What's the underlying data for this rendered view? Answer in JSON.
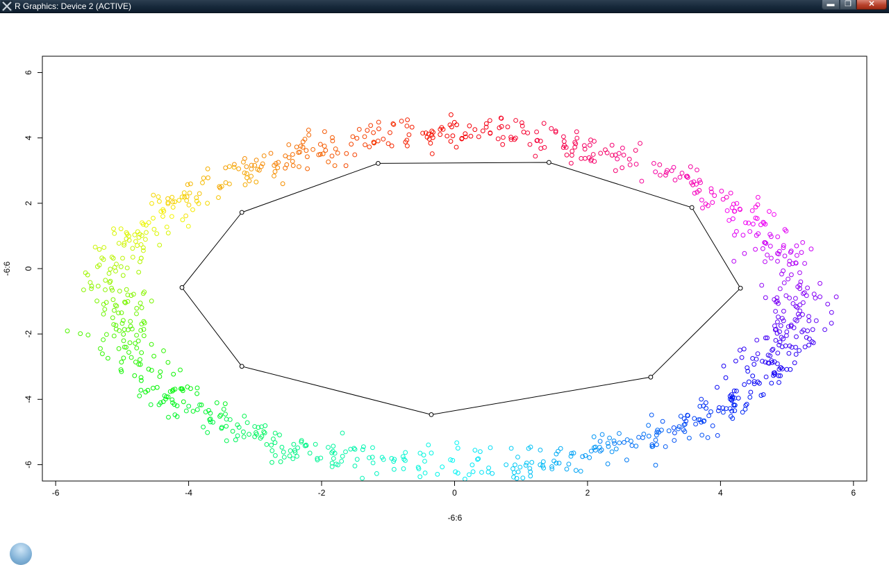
{
  "window": {
    "title": "R Graphics: Device 2 (ACTIVE)",
    "buttons": {
      "minimize": "▬",
      "maximize": "❐",
      "close": "✕"
    }
  },
  "chart_data": {
    "type": "scatter",
    "title": "",
    "xlabel": "-6:6",
    "ylabel": "-6:6",
    "xlim": [
      -6.2,
      6.2
    ],
    "ylim": [
      -6.5,
      6.5
    ],
    "xticks": [
      -6,
      -4,
      -2,
      0,
      2,
      4,
      6
    ],
    "yticks": [
      -6,
      -4,
      -2,
      0,
      2,
      4,
      6
    ],
    "xtick_labels": [
      "-6",
      "-4",
      "-2",
      "0",
      "2",
      "4",
      "6"
    ],
    "ytick_labels": [
      "-6",
      "-4",
      "-2",
      "0",
      "2",
      "4",
      "6"
    ],
    "point_marker": "open circle",
    "point_color_scheme": "rainbow by angle around ring",
    "ring": {
      "center": [
        0,
        -1
      ],
      "x_radius_mean": 5.15,
      "y_radius_mean": 5.1,
      "approx_points": 1000
    },
    "path": {
      "color": "#000000",
      "closed": true,
      "points": [
        [
          -3.2,
          1.72
        ],
        [
          -1.15,
          3.22
        ],
        [
          1.42,
          3.25
        ],
        [
          3.57,
          1.87
        ],
        [
          4.3,
          -0.6
        ],
        [
          2.95,
          -3.32
        ],
        [
          -0.35,
          -4.47
        ],
        [
          -3.2,
          -2.99
        ],
        [
          -4.1,
          -0.58
        ]
      ]
    },
    "legend": "none",
    "grid": false
  }
}
